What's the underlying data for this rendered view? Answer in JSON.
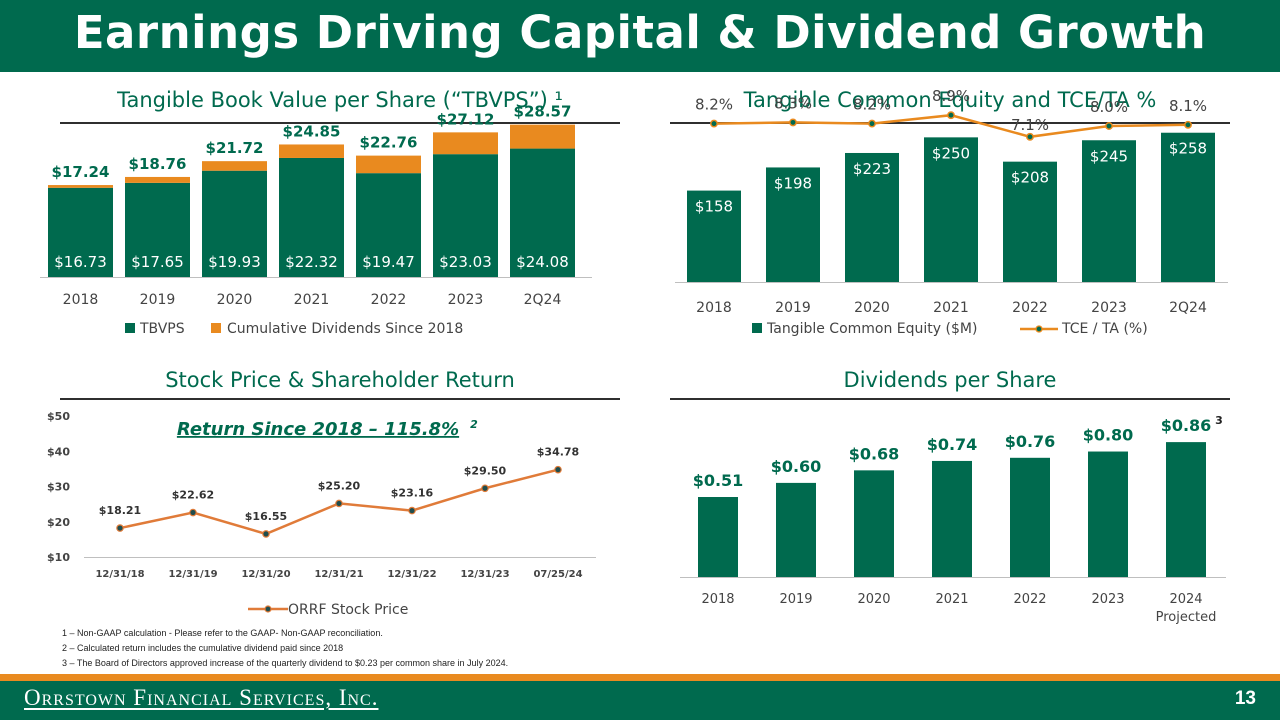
{
  "title": "Earnings Driving Capital & Dividend Growth",
  "panels": {
    "tbvps_title": "Tangible Book Value per Share (“TBVPS”) ¹",
    "tce_title": "Tangible Common Equity and TCE/TA %",
    "stock_title": "Stock Price & Shareholder Return",
    "dps_title": "Dividends per Share"
  },
  "colors": {
    "green": "#006a4e",
    "orange": "#e98a1f",
    "stock_line": "#e07b39"
  },
  "chart_data": [
    {
      "id": "tbvps",
      "type": "bar",
      "stacked": true,
      "categories": [
        "2018",
        "2019",
        "2020",
        "2021",
        "2022",
        "2023",
        "2Q24"
      ],
      "series": [
        {
          "name": "TBVPS",
          "values": [
            16.73,
            17.65,
            19.93,
            22.32,
            19.47,
            23.03,
            24.08
          ],
          "labels": [
            "$16.73",
            "$17.65",
            "$19.93",
            "$22.32",
            "$19.47",
            "$23.03",
            "$24.08"
          ]
        },
        {
          "name": "Cumulative Dividends Since 2018",
          "values": [
            0.51,
            1.11,
            1.79,
            2.53,
            3.29,
            4.09,
            4.49
          ]
        }
      ],
      "totals": [
        17.24,
        18.76,
        21.72,
        24.85,
        22.76,
        27.12,
        28.57
      ],
      "total_labels": [
        "$17.24",
        "$18.76",
        "$21.72",
        "$24.85",
        "$22.76",
        "$27.12",
        "$28.57"
      ],
      "ylim": [
        0,
        30
      ],
      "legend": "bottom"
    },
    {
      "id": "tce",
      "type": "bar",
      "categories": [
        "2018",
        "2019",
        "2020",
        "2021",
        "2022",
        "2023",
        "2Q24"
      ],
      "series": [
        {
          "name": "Tangible Common Equity ($M)",
          "kind": "bar",
          "values": [
            158,
            198,
            223,
            250,
            208,
            245,
            258
          ],
          "labels": [
            "$158",
            "$198",
            "$223",
            "$250",
            "$208",
            "$245",
            "$258"
          ]
        },
        {
          "name": "TCE / TA (%)",
          "kind": "line",
          "values": [
            8.2,
            8.3,
            8.2,
            8.9,
            7.1,
            8.0,
            8.1
          ],
          "labels": [
            "8.2%",
            "8.3%",
            "8.2%",
            "8.9%",
            "7.1%",
            "8.0%",
            "8.1%"
          ]
        }
      ],
      "ylim": [
        0,
        420
      ],
      "y2lim": [
        -5,
        10
      ],
      "legend": "bottom"
    },
    {
      "id": "stock",
      "type": "line",
      "annotation": "Return Since 2018 – 115.8%",
      "annotation_sup": "2",
      "categories": [
        "12/31/18",
        "12/31/19",
        "12/31/20",
        "12/31/21",
        "12/31/22",
        "12/31/23",
        "07/25/24"
      ],
      "series": [
        {
          "name": "ORRF Stock Price",
          "values": [
            18.21,
            22.62,
            16.55,
            25.2,
            23.16,
            29.5,
            34.78
          ],
          "labels": [
            "$18.21",
            "$22.62",
            "$16.55",
            "$25.20",
            "$23.16",
            "$29.50",
            "$34.78"
          ]
        }
      ],
      "yticks": [
        "$50",
        "$40",
        "$30",
        "$20",
        "$10"
      ],
      "ylim": [
        10,
        50
      ],
      "legend": "bottom"
    },
    {
      "id": "dps",
      "type": "bar",
      "categories": [
        "2018",
        "2019",
        "2020",
        "2021",
        "2022",
        "2023",
        "2024"
      ],
      "category_sub": [
        "",
        "",
        "",
        "",
        "",
        "",
        "Projected"
      ],
      "series": [
        {
          "name": "Dividends per Share",
          "values": [
            0.51,
            0.6,
            0.68,
            0.74,
            0.76,
            0.8,
            0.86
          ],
          "labels": [
            "$0.51",
            "$0.60",
            "$0.68",
            "$0.74",
            "$0.76",
            "$0.80",
            "$0.86"
          ]
        }
      ],
      "label_note": "3",
      "ylim": [
        0,
        0.95
      ]
    }
  ],
  "footnotes": [
    "1 – Non-GAAP calculation - Please refer to the GAAP- Non-GAAP reconciliation.",
    "2 – Calculated return includes the cumulative dividend paid since 2018",
    "3 – The Board of Directors approved increase of the quarterly dividend to $0.23 per common share in July 2024."
  ],
  "footer": {
    "company": "Orrstown Financial Services, Inc.",
    "page": "13"
  }
}
